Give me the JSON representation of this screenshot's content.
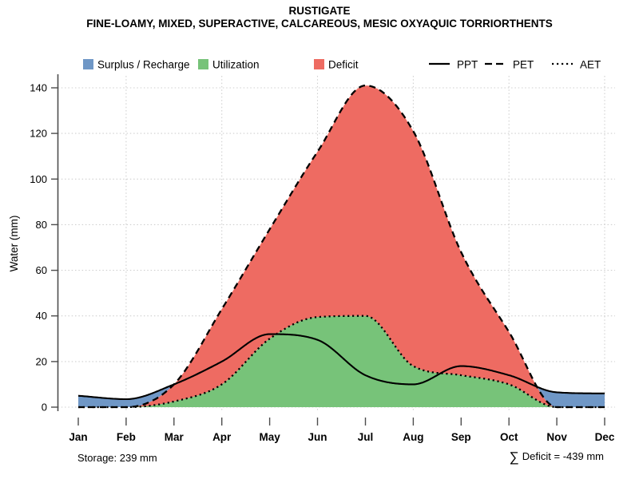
{
  "header": {
    "title": "RUSTIGATE",
    "subtitle": "FINE-LOAMY, MIXED, SUPERACTIVE, CALCAREOUS, MESIC OXYAQUIC TORRIORTHENTS"
  },
  "legend": {
    "area_items": [
      {
        "key": "surplus",
        "label": "Surplus / Recharge"
      },
      {
        "key": "utilization",
        "label": "Utilization"
      },
      {
        "key": "deficit",
        "label": "Deficit"
      }
    ],
    "line_items": [
      {
        "key": "ppt",
        "label": "PPT",
        "style": "solid"
      },
      {
        "key": "pet",
        "label": "PET",
        "style": "dashed"
      },
      {
        "key": "aet",
        "label": "AET",
        "style": "dotted"
      }
    ]
  },
  "footer": {
    "storage": "Storage: 239 mm",
    "deficit_symbol": "∑",
    "deficit_text": "Deficit = -439 mm"
  },
  "colors": {
    "surplus": "#6F97C6",
    "utilization": "#77C379",
    "deficit": "#EE6B62",
    "line": "#000000",
    "axis": "#4D4D4D",
    "grid": "#CFCFCF",
    "text": "#000000"
  },
  "chart_data": {
    "type": "area",
    "title": "RUSTIGATE",
    "ylabel": "Water (mm)",
    "xlabel": "",
    "categories": [
      "Jan",
      "Feb",
      "Mar",
      "Apr",
      "May",
      "Jun",
      "Jul",
      "Aug",
      "Sep",
      "Oct",
      "Nov",
      "Dec"
    ],
    "series": [
      {
        "name": "PPT",
        "line_style": "solid",
        "values": [
          5,
          3.5,
          10,
          20,
          32,
          29.5,
          14,
          10,
          18,
          14,
          6.5,
          6
        ]
      },
      {
        "name": "PET",
        "line_style": "dashed",
        "values": [
          0,
          0,
          10,
          43,
          78,
          112,
          141,
          121,
          68,
          33,
          0,
          0
        ]
      },
      {
        "name": "AET",
        "line_style": "dotted",
        "values": [
          0,
          0,
          2.5,
          10,
          30,
          39.5,
          40,
          18,
          14,
          10,
          0,
          0
        ]
      }
    ],
    "areas": [
      {
        "name": "Surplus / Recharge",
        "rule": "PPT above PET"
      },
      {
        "name": "Utilization",
        "rule": "area under AET"
      },
      {
        "name": "Deficit",
        "rule": "between PET and AET"
      }
    ],
    "ylim": [
      0,
      140
    ],
    "yticks": [
      0,
      20,
      40,
      60,
      80,
      100,
      120,
      140
    ],
    "grid": "dotted, horizontal at each y tick, vertical at Feb/Apr/Jun/Aug/Oct/Dec",
    "legend_position": "top",
    "annotations": {
      "storage_mm": 239,
      "sum_deficit_mm": -439
    }
  }
}
